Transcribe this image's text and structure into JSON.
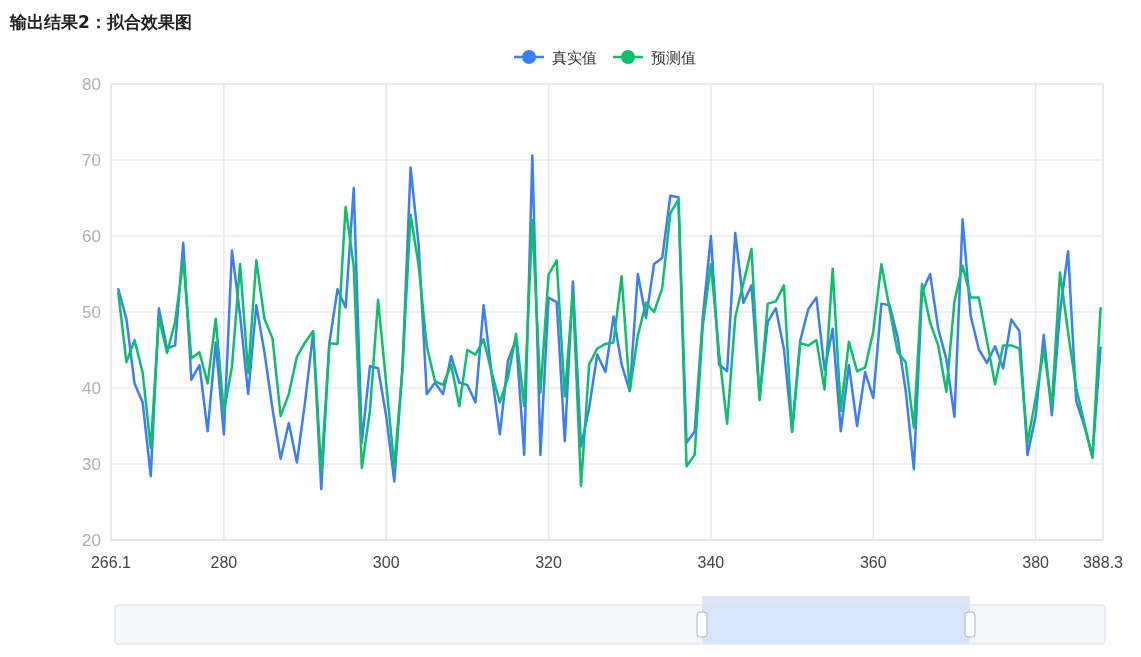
{
  "chart_data": {
    "type": "line",
    "title": "输出结果2：拟合效果图",
    "x": [
      267,
      268,
      269,
      270,
      271,
      272,
      273,
      274,
      275,
      276,
      277,
      278,
      279,
      280,
      281,
      282,
      283,
      284,
      285,
      286,
      287,
      288,
      289,
      290,
      291,
      292,
      293,
      294,
      295,
      296,
      297,
      298,
      299,
      300,
      301,
      302,
      303,
      304,
      305,
      306,
      307,
      308,
      309,
      310,
      311,
      312,
      313,
      314,
      315,
      316,
      317,
      318,
      319,
      320,
      321,
      322,
      323,
      324,
      325,
      326,
      327,
      328,
      329,
      330,
      331,
      332,
      333,
      334,
      335,
      336,
      337,
      338,
      339,
      340,
      341,
      342,
      343,
      344,
      345,
      346,
      347,
      348,
      349,
      350,
      351,
      352,
      353,
      354,
      355,
      356,
      357,
      358,
      359,
      360,
      361,
      362,
      363,
      364,
      365,
      366,
      367,
      368,
      369,
      370,
      371,
      372,
      373,
      374,
      375,
      376,
      377,
      378,
      379,
      380,
      381,
      382,
      383,
      384,
      385,
      386,
      387,
      388
    ],
    "series": [
      {
        "name": "真实值",
        "color": "#3b7ff6",
        "values": [
          53,
          49.1,
          40.6,
          38.1,
          28.4,
          50.5,
          45.2,
          45.6,
          59.1,
          41.1,
          43,
          34.3,
          46,
          33.9,
          58.1,
          49.6,
          39.2,
          50.9,
          44.7,
          37.2,
          30.7,
          35.4,
          30.2,
          38.1,
          47.3,
          26.7,
          45.9,
          53,
          50.6,
          66.3,
          32.8,
          42.9,
          42.6,
          36.3,
          27.7,
          42.5,
          69,
          58.8,
          39.2,
          40.7,
          39.2,
          44.2,
          40.7,
          40.4,
          38.1,
          50.9,
          41.8,
          33.9,
          43.6,
          46.4,
          31.2,
          70.6,
          31.2,
          51.9,
          51.3,
          33,
          54,
          32.3,
          37.4,
          44.4,
          42.1,
          49.4,
          43.1,
          39.6,
          55,
          49.2,
          56.3,
          57.1,
          65.3,
          65.1,
          32.8,
          34.3,
          49.3,
          60,
          43.1,
          42.2,
          60.4,
          51.2,
          53.5,
          38.7,
          48.7,
          50.5,
          45.1,
          34.3,
          46.2,
          50.4,
          51.9,
          42.4,
          47.8,
          34.3,
          43,
          35,
          42.1,
          38.7,
          51.1,
          50.9,
          46.7,
          39.6,
          29.3,
          52.6,
          55,
          47.8,
          43.8,
          36.2,
          62.2,
          49.5,
          45.1,
          43.3,
          45.5,
          42.6,
          49,
          47.5,
          31.2,
          36.3,
          47,
          36.4,
          50,
          58,
          38.3,
          35,
          31,
          45.3
        ]
      },
      {
        "name": "预测值",
        "color": "#0cbf6b",
        "values": [
          52.5,
          43.4,
          46.3,
          42,
          32.1,
          49.3,
          44.6,
          48.7,
          56.8,
          43.9,
          44.7,
          40.6,
          49.1,
          36.8,
          42.8,
          56.3,
          42,
          56.8,
          49.1,
          46.5,
          36.3,
          39.2,
          44.1,
          46,
          47.5,
          29,
          45.9,
          45.8,
          63.8,
          56,
          29.5,
          37,
          51.6,
          40.6,
          29.7,
          42.5,
          62.8,
          56.1,
          45.5,
          40.9,
          40.4,
          43.1,
          37.6,
          45,
          44.4,
          46.4,
          42,
          38.1,
          41.4,
          47.1,
          37.6,
          62.1,
          39.4,
          54.9,
          56.8,
          38.9,
          52.6,
          27.1,
          43.1,
          45.2,
          45.8,
          46,
          54.7,
          39.6,
          46.9,
          51.2,
          50,
          53.1,
          63,
          64.8,
          29.7,
          31.2,
          48.2,
          56.3,
          44.7,
          35.3,
          49.3,
          53.8,
          58.3,
          38.4,
          51.1,
          51.4,
          53.5,
          34.2,
          45.9,
          45.6,
          46.3,
          39.8,
          55.7,
          37,
          46.1,
          42.2,
          42.7,
          47.4,
          56.3,
          50.5,
          44.7,
          43.4,
          34.8,
          53.7,
          48.6,
          45.6,
          39.5,
          51.4,
          56.1,
          51.9,
          51.9,
          46.2,
          40.5,
          45.6,
          45.6,
          45.2,
          32.8,
          38.6,
          45.1,
          37.6,
          55.2,
          47.3,
          40,
          35.4,
          30.8,
          50.5
        ]
      }
    ],
    "xlim": [
      266.1,
      388.3
    ],
    "xticks": [
      266.1,
      280,
      300,
      320,
      340,
      360,
      380,
      388.3
    ],
    "ylim": [
      20,
      80
    ],
    "yticks": [
      20,
      30,
      40,
      50,
      60,
      70,
      80
    ],
    "grid": true,
    "legend": "top",
    "marker": "none",
    "line_style": "solid"
  }
}
